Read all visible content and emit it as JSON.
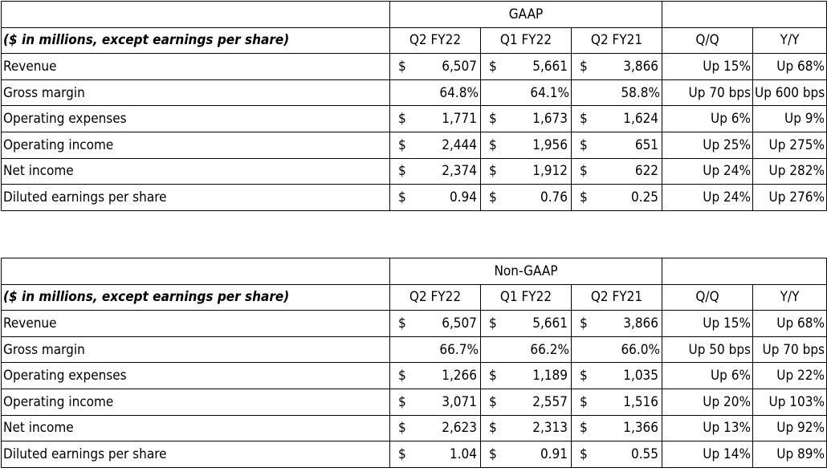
{
  "gaap": {
    "title": "GAAP",
    "note": "($ in millions, except earnings per share)",
    "headers": [
      "Q2 FY22",
      "Q1 FY22",
      "Q2 FY21",
      "Q/Q",
      "Y/Y"
    ],
    "rows": [
      {
        "label": "Revenue",
        "c1": "$",
        "v1": "6,507",
        "c2": "$",
        "v2": "5,661",
        "c3": "$",
        "v3": "3,866",
        "qq": "Up 15%",
        "yy": "Up 68%"
      },
      {
        "label": "Gross margin",
        "c1": "",
        "v1": "64.8%",
        "c2": "",
        "v2": "64.1%",
        "c3": "",
        "v3": "58.8%",
        "qq": "Up 70 bps",
        "yy": "Up 600 bps"
      },
      {
        "label": "Operating expenses",
        "c1": "$",
        "v1": "1,771",
        "c2": "$",
        "v2": "1,673",
        "c3": "$",
        "v3": "1,624",
        "qq": "Up 6%",
        "yy": "Up 9%"
      },
      {
        "label": "Operating income",
        "c1": "$",
        "v1": "2,444",
        "c2": "$",
        "v2": "1,956",
        "c3": "$",
        "v3": "651",
        "qq": "Up 25%",
        "yy": "Up 275%"
      },
      {
        "label": "Net income",
        "c1": "$",
        "v1": "2,374",
        "c2": "$",
        "v2": "1,912",
        "c3": "$",
        "v3": "622",
        "qq": "Up 24%",
        "yy": "Up 282%"
      },
      {
        "label": "Diluted earnings per share",
        "c1": "$",
        "v1": "0.94",
        "c2": "$",
        "v2": "0.76",
        "c3": "$",
        "v3": "0.25",
        "qq": "Up 24%",
        "yy": "Up 276%"
      }
    ]
  },
  "nongaap": {
    "title": "Non-GAAP",
    "note": "($ in millions, except earnings per share)",
    "headers": [
      "Q2 FY22",
      "Q1 FY22",
      "Q2 FY21",
      "Q/Q",
      "Y/Y"
    ],
    "rows": [
      {
        "label": "Revenue",
        "c1": "$",
        "v1": "6,507",
        "c2": "$",
        "v2": "5,661",
        "c3": "$",
        "v3": "3,866",
        "qq": "Up 15%",
        "yy": "Up 68%"
      },
      {
        "label": "Gross margin",
        "c1": "",
        "v1": "66.7%",
        "c2": "",
        "v2": "66.2%",
        "c3": "",
        "v3": "66.0%",
        "qq": "Up 50 bps",
        "yy": "Up 70 bps"
      },
      {
        "label": "Operating expenses",
        "c1": "$",
        "v1": "1,266",
        "c2": "$",
        "v2": "1,189",
        "c3": "$",
        "v3": "1,035",
        "qq": "Up 6%",
        "yy": "Up 22%"
      },
      {
        "label": "Operating income",
        "c1": "$",
        "v1": "3,071",
        "c2": "$",
        "v2": "2,557",
        "c3": "$",
        "v3": "1,516",
        "qq": "Up 20%",
        "yy": "Up 103%"
      },
      {
        "label": "Net income",
        "c1": "$",
        "v1": "2,623",
        "c2": "$",
        "v2": "2,313",
        "c3": "$",
        "v3": "1,366",
        "qq": "Up 13%",
        "yy": "Up 92%"
      },
      {
        "label": "Diluted earnings per share",
        "c1": "$",
        "v1": "1.04",
        "c2": "$",
        "v2": "0.91",
        "c3": "$",
        "v3": "0.55",
        "qq": "Up 14%",
        "yy": "Up 89%"
      }
    ]
  }
}
